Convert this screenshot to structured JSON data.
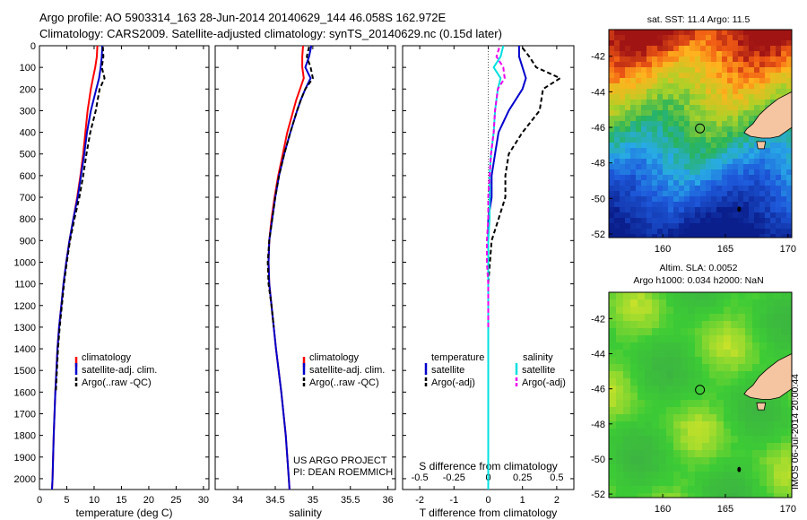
{
  "title_line1": "Argo profile: AO 5903314_163 28-Jun-2014 20140629_144 46.058S 162.972E",
  "title_line2": "Climatology: CARS2009. Satellite-adjusted climatology: synTS_20140629.nc (0.15d later)",
  "project_line1": "US ARGO PROJECT",
  "project_line2": "PI: DEAN ROEMMICH",
  "timestamp": "IMOS 06-Jul-2014 20:00:44",
  "colors": {
    "climatology": "#ff0000",
    "satellite": "#0000cc",
    "argo": "#000000",
    "sal_satellite": "#00e0e0",
    "sal_argo": "#ee00ee",
    "land": "#f5c4a0"
  },
  "legend_left": [
    "climatology",
    "satellite-adj. clim.",
    "Argo(..raw -QC)"
  ],
  "legend_diff": {
    "head_t": "temperature",
    "head_s": "salinity",
    "t_sat": "satellite",
    "t_argo": "Argo(-adj)",
    "s_sat": "satellite",
    "s_argo": "Argo(-adj)"
  },
  "map1": {
    "title": "sat. SST: 11.4 Argo: 11.5",
    "yticks": [
      "-42",
      "-44",
      "-46",
      "-48",
      "-50",
      "-52"
    ],
    "xticks": [
      "160",
      "165",
      "170"
    ]
  },
  "map2": {
    "title1": "Altim. SLA: 0.0052",
    "title2": "Argo h1000: 0.034 h2000: NaN",
    "yticks": [
      "-42",
      "-44",
      "-46",
      "-48",
      "-50",
      "-52"
    ],
    "xticks": [
      "160",
      "165",
      "170"
    ]
  },
  "chart_data": [
    {
      "type": "line",
      "xlabel": "temperature (deg C)",
      "ylabel": "",
      "xlim": [
        0,
        31
      ],
      "ylim": [
        0,
        2050
      ],
      "y_reversed": true,
      "xticks": [
        0,
        5,
        10,
        15,
        20,
        25,
        30
      ],
      "yticks": [
        0,
        100,
        200,
        300,
        400,
        500,
        600,
        700,
        800,
        900,
        1000,
        1100,
        1200,
        1300,
        1400,
        1500,
        1600,
        1700,
        1800,
        1900,
        2000
      ],
      "series": [
        {
          "name": "climatology",
          "depth": [
            0,
            50,
            100,
            150,
            200,
            300,
            400,
            500,
            600,
            700,
            800,
            900,
            1000,
            1100,
            1200,
            1300,
            1400,
            1600,
            1800,
            2000,
            2050
          ],
          "values": [
            10.6,
            10.5,
            10.2,
            9.8,
            9.4,
            8.8,
            8.4,
            8.0,
            7.5,
            6.9,
            6.2,
            5.5,
            4.9,
            4.4,
            4.0,
            3.6,
            3.3,
            2.9,
            2.6,
            2.4,
            2.3
          ]
        },
        {
          "name": "satellite-adj. clim.",
          "depth": [
            0,
            50,
            100,
            150,
            200,
            300,
            400,
            500,
            600,
            700,
            800,
            900,
            1000,
            1100,
            1200,
            1300,
            1400,
            1600,
            1800,
            2000,
            2050
          ],
          "values": [
            11.5,
            11.4,
            11.2,
            10.9,
            10.4,
            9.4,
            8.7,
            8.2,
            7.6,
            7.0,
            6.2,
            5.5,
            4.9,
            4.4,
            4.0,
            3.6,
            3.3,
            2.9,
            2.6,
            2.4,
            2.3
          ]
        },
        {
          "name": "Argo(..raw -QC)",
          "depth": [
            5,
            50,
            100,
            150,
            200,
            300,
            400,
            500,
            600,
            700,
            800,
            900,
            1000,
            1100,
            1200,
            1300,
            1400,
            1600
          ],
          "values": [
            11.6,
            11.7,
            11.4,
            11.9,
            11.0,
            10.3,
            9.3,
            8.6,
            8.0,
            7.3,
            6.4,
            5.6,
            5.0,
            4.5,
            4.1,
            3.7,
            3.4,
            3.0
          ]
        }
      ]
    },
    {
      "type": "line",
      "xlabel": "salinity",
      "ylabel": "",
      "xlim": [
        33.7,
        36.1
      ],
      "ylim": [
        0,
        2050
      ],
      "y_reversed": true,
      "xticks": [
        34,
        34.5,
        35,
        35.5,
        36
      ],
      "yticks": [
        0,
        100,
        200,
        300,
        400,
        500,
        600,
        700,
        800,
        900,
        1000,
        1100,
        1200,
        1300,
        1400,
        1500,
        1600,
        1700,
        1800,
        1900,
        2000
      ],
      "series": [
        {
          "name": "climatology",
          "depth": [
            0,
            50,
            100,
            150,
            200,
            250,
            300,
            400,
            500,
            600,
            700,
            800,
            900,
            1000,
            1100,
            1200,
            1300,
            1400,
            1600,
            1800,
            2000,
            2050
          ],
          "values": [
            34.87,
            34.86,
            34.86,
            34.88,
            34.83,
            34.78,
            34.74,
            34.66,
            34.6,
            34.54,
            34.49,
            34.45,
            34.42,
            34.41,
            34.42,
            34.45,
            34.48,
            34.51,
            34.58,
            34.64,
            34.68,
            34.69
          ]
        },
        {
          "name": "satellite-adj. clim.",
          "depth": [
            0,
            50,
            100,
            150,
            200,
            250,
            300,
            400,
            500,
            600,
            700,
            800,
            900,
            1000,
            1100,
            1200,
            1300,
            1400,
            1600,
            1800,
            2000,
            2050
          ],
          "values": [
            34.98,
            34.95,
            34.9,
            34.97,
            34.9,
            34.84,
            34.79,
            34.7,
            34.62,
            34.55,
            34.5,
            34.46,
            34.42,
            34.41,
            34.42,
            34.45,
            34.48,
            34.51,
            34.58,
            34.64,
            34.68,
            34.69
          ]
        },
        {
          "name": "Argo(..raw -QC)",
          "depth": [
            5,
            50,
            100,
            150,
            200,
            250,
            300,
            400,
            500,
            600,
            700,
            800,
            900,
            1000,
            1100,
            1200,
            1300
          ],
          "values": [
            34.95,
            34.92,
            34.97,
            35.0,
            34.9,
            34.84,
            34.79,
            34.7,
            34.62,
            34.55,
            34.5,
            34.46,
            34.42,
            34.4,
            34.41,
            34.45,
            34.48
          ]
        }
      ]
    },
    {
      "type": "line",
      "xlabel": "T difference from climatology",
      "title": "S difference from climatology",
      "xlim": [
        -2.5,
        2.5
      ],
      "ylim": [
        0,
        2050
      ],
      "y_reversed": true,
      "xticks_T": [
        -2,
        -1,
        0,
        1,
        2
      ],
      "xticks_S": [
        -0.5,
        -0.25,
        0,
        0.25,
        0.5
      ],
      "series": [
        {
          "name": "temperature satellite",
          "depth": [
            0,
            50,
            100,
            150,
            200,
            300,
            400,
            500,
            600,
            700,
            800,
            900,
            1000,
            1200,
            1500,
            2050
          ],
          "values": [
            0.9,
            0.9,
            1.0,
            1.1,
            1.0,
            0.6,
            0.3,
            0.2,
            0.1,
            0.1,
            0.0,
            0.0,
            0.0,
            0.0,
            0.0,
            0.0
          ]
        },
        {
          "name": "temperature Argo(-adj)",
          "depth": [
            10,
            50,
            100,
            150,
            200,
            300,
            400,
            500,
            600,
            700,
            800,
            900,
            1000,
            1100,
            1200,
            1300,
            1400,
            1600
          ],
          "values": [
            1.0,
            1.2,
            1.4,
            2.1,
            1.6,
            1.5,
            1.0,
            0.6,
            0.5,
            0.5,
            0.3,
            0.1,
            0.05,
            0.0,
            0.0,
            0.0,
            0.0,
            0.0
          ]
        },
        {
          "name": "salinity satellite",
          "depth": [
            0,
            50,
            100,
            150,
            200,
            300,
            400,
            500,
            600,
            700,
            800,
            900,
            1000,
            1200,
            1500,
            2050
          ],
          "values": [
            0.11,
            0.09,
            0.04,
            0.09,
            0.07,
            0.05,
            0.04,
            0.02,
            0.01,
            0.01,
            0.01,
            0.0,
            0.0,
            0.0,
            0.0,
            0.0
          ]
        },
        {
          "name": "salinity Argo(-adj)",
          "depth": [
            10,
            50,
            100,
            150,
            200,
            300,
            400,
            500,
            600,
            700,
            800,
            900,
            1000,
            1100,
            1200,
            1300
          ],
          "values": [
            0.08,
            0.06,
            0.11,
            0.12,
            0.07,
            0.05,
            0.04,
            0.02,
            0.01,
            0.0,
            0.0,
            -0.01,
            -0.01,
            0.0,
            0.0,
            0.0
          ]
        }
      ]
    }
  ]
}
